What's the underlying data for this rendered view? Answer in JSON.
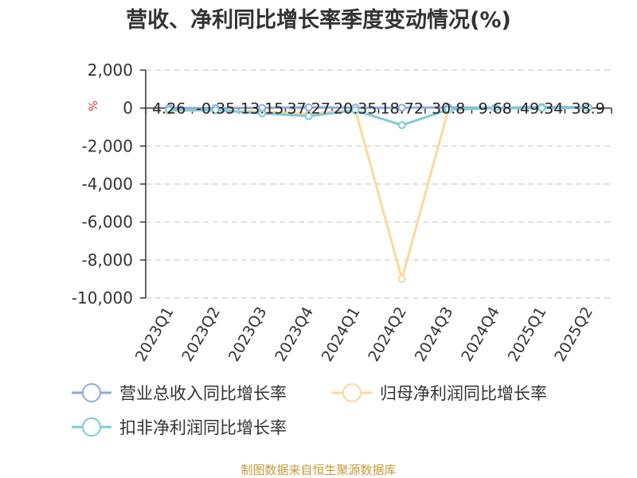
{
  "chart_data": {
    "type": "line",
    "title": "营收、净利同比增长率季度变动情况(%)",
    "ylabel": "%",
    "ylim": [
      -10000,
      2000
    ],
    "yticks": [
      2000,
      0,
      -2000,
      -4000,
      -6000,
      -8000,
      -10000
    ],
    "ytick_labels": [
      "2,000",
      "0",
      "-2,000",
      "-4,000",
      "-6,000",
      "-8,000",
      "-10,000"
    ],
    "grid": true,
    "legend_position": "bottom-left",
    "categories": [
      "2023Q1",
      "2023Q2",
      "2023Q3",
      "2023Q4",
      "2024Q1",
      "2024Q2",
      "2024Q3",
      "2024Q4",
      "2025Q1",
      "2025Q2"
    ],
    "series": [
      {
        "name": "营业总收入同比增长率",
        "color": "#8faadc",
        "values": [
          4.26,
          -0.35,
          13.15,
          37.27,
          20.35,
          18.72,
          30.8,
          9.68,
          49.34,
          38.9
        ],
        "labels": [
          "4.26",
          "-0.35",
          "13.15",
          "37.27",
          "20.35",
          "18.72",
          "30.8",
          "9.68",
          "49.34",
          "38.9"
        ]
      },
      {
        "name": "归母净利润同比增长率",
        "color": "#fad99c",
        "values": [
          -150,
          -100,
          -200,
          -300,
          -100,
          -9000,
          -50,
          0,
          50,
          30
        ]
      },
      {
        "name": "扣非净利润同比增长率",
        "color": "#7ecbd6",
        "values": [
          -100,
          -120,
          -280,
          -420,
          -120,
          -900,
          -80,
          0,
          0,
          20
        ]
      }
    ]
  },
  "footer": {
    "source": "制图数据来自恒生聚源数据库"
  }
}
